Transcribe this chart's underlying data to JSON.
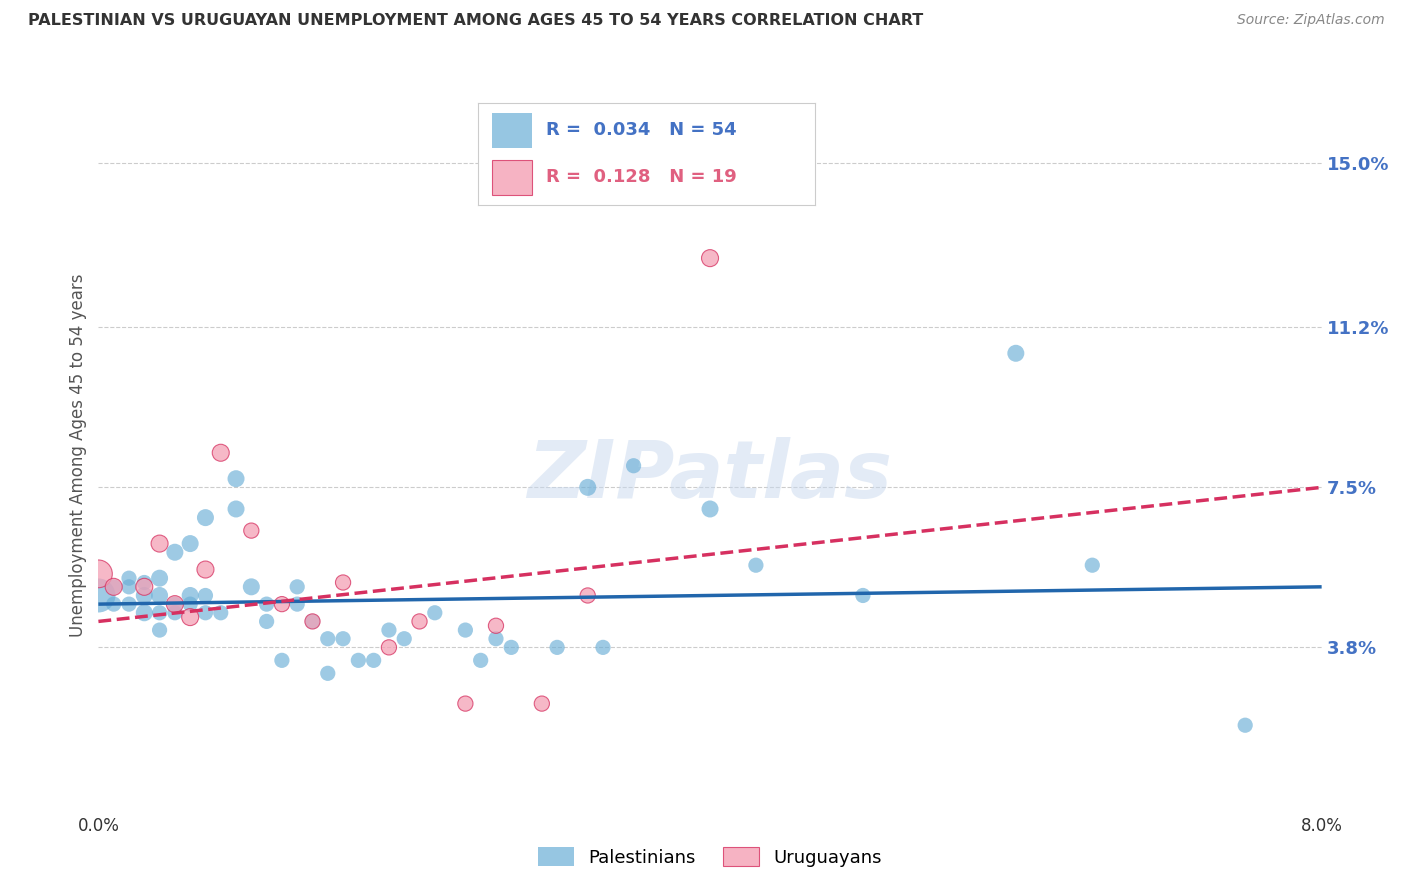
{
  "title": "PALESTINIAN VS URUGUAYAN UNEMPLOYMENT AMONG AGES 45 TO 54 YEARS CORRELATION CHART",
  "source": "Source: ZipAtlas.com",
  "ylabel": "Unemployment Among Ages 45 to 54 years",
  "xlim": [
    0.0,
    0.08
  ],
  "ylim": [
    0.0,
    0.165
  ],
  "xticks": [
    0.0,
    0.01,
    0.02,
    0.03,
    0.04,
    0.05,
    0.06,
    0.07,
    0.08
  ],
  "xticklabels": [
    "0.0%",
    "",
    "",
    "",
    "",
    "",
    "",
    "",
    "8.0%"
  ],
  "right_yticks": [
    0.038,
    0.075,
    0.112,
    0.15
  ],
  "right_yticklabels": [
    "3.8%",
    "7.5%",
    "11.2%",
    "15.0%"
  ],
  "legend_r_blue": "0.034",
  "legend_n_blue": "54",
  "legend_r_pink": "0.128",
  "legend_n_pink": "19",
  "blue_color": "#6aaed6",
  "pink_color": "#f4a0b5",
  "blue_line_color": "#2166ac",
  "pink_line_color": "#d63060",
  "watermark": "ZIPatlas",
  "blue_scatter_x": [
    0.0,
    0.001,
    0.001,
    0.002,
    0.002,
    0.002,
    0.003,
    0.003,
    0.003,
    0.004,
    0.004,
    0.004,
    0.004,
    0.005,
    0.005,
    0.005,
    0.006,
    0.006,
    0.006,
    0.007,
    0.007,
    0.007,
    0.008,
    0.009,
    0.009,
    0.01,
    0.011,
    0.011,
    0.012,
    0.013,
    0.013,
    0.014,
    0.015,
    0.015,
    0.016,
    0.017,
    0.018,
    0.019,
    0.02,
    0.022,
    0.024,
    0.025,
    0.026,
    0.027,
    0.03,
    0.032,
    0.033,
    0.035,
    0.04,
    0.043,
    0.05,
    0.06,
    0.065,
    0.075
  ],
  "blue_scatter_y": [
    0.05,
    0.048,
    0.052,
    0.052,
    0.054,
    0.048,
    0.05,
    0.046,
    0.053,
    0.05,
    0.046,
    0.042,
    0.054,
    0.06,
    0.048,
    0.046,
    0.062,
    0.05,
    0.048,
    0.068,
    0.046,
    0.05,
    0.046,
    0.077,
    0.07,
    0.052,
    0.048,
    0.044,
    0.035,
    0.052,
    0.048,
    0.044,
    0.04,
    0.032,
    0.04,
    0.035,
    0.035,
    0.042,
    0.04,
    0.046,
    0.042,
    0.035,
    0.04,
    0.038,
    0.038,
    0.075,
    0.038,
    0.08,
    0.07,
    0.057,
    0.05,
    0.106,
    0.057,
    0.02
  ],
  "blue_scatter_size": [
    600,
    120,
    120,
    120,
    120,
    120,
    150,
    150,
    120,
    150,
    120,
    120,
    150,
    150,
    120,
    120,
    150,
    150,
    120,
    150,
    120,
    120,
    120,
    150,
    150,
    150,
    120,
    120,
    120,
    120,
    120,
    120,
    120,
    120,
    120,
    120,
    120,
    120,
    120,
    120,
    120,
    120,
    120,
    120,
    120,
    150,
    120,
    120,
    150,
    120,
    120,
    150,
    120,
    120
  ],
  "pink_scatter_x": [
    0.0,
    0.001,
    0.003,
    0.004,
    0.005,
    0.006,
    0.007,
    0.008,
    0.01,
    0.012,
    0.014,
    0.016,
    0.019,
    0.021,
    0.024,
    0.026,
    0.029,
    0.032,
    0.04
  ],
  "pink_scatter_y": [
    0.055,
    0.052,
    0.052,
    0.062,
    0.048,
    0.045,
    0.056,
    0.083,
    0.065,
    0.048,
    0.044,
    0.053,
    0.038,
    0.044,
    0.025,
    0.043,
    0.025,
    0.05,
    0.128
  ],
  "pink_scatter_size": [
    400,
    150,
    150,
    150,
    150,
    150,
    150,
    150,
    120,
    120,
    120,
    120,
    120,
    120,
    120,
    120,
    120,
    120,
    150
  ],
  "blue_trend_x": [
    0.0,
    0.08
  ],
  "blue_trend_y": [
    0.048,
    0.052
  ],
  "pink_trend_x": [
    0.0,
    0.08
  ],
  "pink_trend_y": [
    0.044,
    0.075
  ],
  "bg_color": "#ffffff",
  "grid_color": "#cccccc",
  "title_color": "#333333",
  "axis_label_color": "#555555",
  "right_axis_color": "#4472c4",
  "pink_legend_color": "#e06080"
}
